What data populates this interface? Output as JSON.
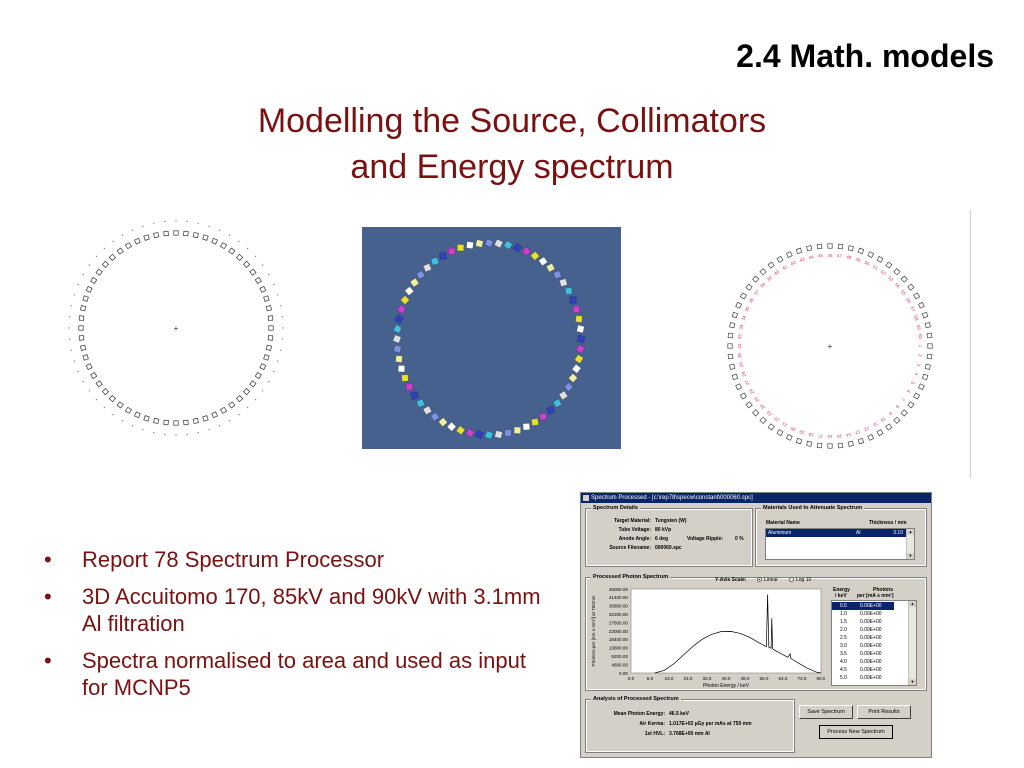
{
  "slide": {
    "section": "2.4 Math. models",
    "title_line1": "Modelling the Source, Collimators",
    "title_line2": "and Energy spectrum",
    "bullets": [
      "Report 78 Spectrum Processor",
      "3D Accuitomo 170, 85kV and 90kV with 3.1mm Al filtration",
      "Spectra normalised to area and used as input for MCNP5"
    ]
  },
  "figures": {
    "ring_count": 60,
    "color_square_colors": [
      "#ffffff",
      "#e8e030",
      "#d040d0",
      "#3040c0",
      "#40c0e0",
      "#e0e0e0",
      "#8090e0",
      "#f0f0a0"
    ],
    "label_color": "#e0306a",
    "panel_color": "#47618f"
  },
  "app": {
    "window_title": "Spectrum Processed - [c:\\rep78\\specw\\constant\\000060.spc]",
    "details": {
      "title": "Spectrum Details",
      "target_label": "Target Material:",
      "target_value": "Tungsten (W)",
      "tube_label": "Tube Voltage:",
      "tube_value": "80 kVp",
      "anode_label": "Anode Angle:",
      "anode_value": "6 deg",
      "ripple_label": "Voltage Ripple:",
      "ripple_value": "0 %",
      "file_label": "Source Filename:",
      "file_value": "000060.spc"
    },
    "materials": {
      "title": "Materials Used to Attenuate Spectrum",
      "col_name": "Material Name",
      "col_thickness": "Thickness / mm",
      "rows": [
        {
          "name": "Aluminium",
          "symbol": "Al",
          "thickness": "3.10"
        }
      ]
    },
    "processed": {
      "title": "Processed Photon Spectrum",
      "scale_label": "Y-Axis Scale:",
      "linear_label": "Linear",
      "log_label": "Log 10",
      "energy_header_1": "Energy",
      "energy_header_2": "/ keV",
      "photons_header_1": "Photons",
      "photons_header_2": "per [mA s mm²]",
      "table": [
        {
          "e": "0.5",
          "p": "0.00E+00"
        },
        {
          "e": "1.0",
          "p": "0.00E+00"
        },
        {
          "e": "1.5",
          "p": "0.00E+00"
        },
        {
          "e": "2.0",
          "p": "0.00E+00"
        },
        {
          "e": "2.5",
          "p": "0.00E+00"
        },
        {
          "e": "3.0",
          "p": "0.00E+00"
        },
        {
          "e": "3.5",
          "p": "0.00E+00"
        },
        {
          "e": "4.0",
          "p": "0.00E+00"
        },
        {
          "e": "4.5",
          "p": "0.00E+00"
        },
        {
          "e": "5.0",
          "p": "0.00E+00"
        }
      ]
    },
    "analysis": {
      "title": "Analysis of Processed Spectrum",
      "mean_label": "Mean Photon Energy:",
      "mean_value": "46.5 keV",
      "kerma_label": "Air Kerma:",
      "kerma_value": "1.017E+02 µGy per mAs at 750 mm",
      "hvl_label": "1st HVL:",
      "hvl_value": "3.768E+00 mm Al"
    },
    "buttons": {
      "save": "Save Spectrum",
      "print": "Print Results",
      "process": "Process New Spectrum"
    }
  },
  "chart_data": {
    "type": "line",
    "xlabel": "Photon Energy / keV",
    "ylabel": "Photons per [mA s mm²] at 750mm",
    "xlim": [
      0,
      80
    ],
    "ylim": [
      0,
      46000
    ],
    "x_ticks": [
      "0.0",
      "8.0",
      "16.0",
      "24.0",
      "32.0",
      "40.0",
      "48.0",
      "56.0",
      "64.0",
      "72.0",
      "80.0"
    ],
    "y_ticks": [
      "0.00",
      "4600.00",
      "9200.00",
      "13800.00",
      "18400.00",
      "23000.00",
      "27600.00",
      "32200.00",
      "36800.00",
      "41400.00",
      "46000.00"
    ],
    "series": [
      {
        "x": [
          10,
          14,
          18,
          22,
          26,
          30,
          34,
          38,
          42,
          46,
          50,
          54,
          57,
          57.5,
          58,
          59,
          59.3,
          59.6,
          60,
          62,
          66,
          67,
          67.3,
          68,
          70,
          74,
          78,
          80
        ],
        "y": [
          0,
          1500,
          5000,
          9800,
          14500,
          18500,
          21200,
          22700,
          22800,
          21700,
          19500,
          16500,
          14400,
          43000,
          14200,
          13600,
          30000,
          13300,
          12800,
          11400,
          8600,
          10500,
          8000,
          7400,
          5800,
          2800,
          500,
          0
        ]
      }
    ]
  }
}
